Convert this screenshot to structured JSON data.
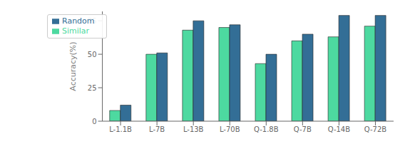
{
  "chart_data": {
    "type": "bar",
    "categories": [
      "L-1.1B",
      "L-7B",
      "L-13B",
      "L-70B",
      "Q-1.8B",
      "Q-7B",
      "Q-14B",
      "Q-72B"
    ],
    "series": [
      {
        "name": "Similar",
        "color": "#4dd9a0",
        "values": [
          8,
          50,
          68,
          70,
          43,
          60,
          63,
          71
        ]
      },
      {
        "name": "Random",
        "color": "#336e96",
        "values": [
          12,
          51,
          75,
          72,
          50,
          65,
          79,
          79
        ]
      }
    ],
    "ylabel": "Accuracy(%)",
    "ylim": [
      0,
      82
    ],
    "yticks": [
      0,
      25,
      50,
      75
    ],
    "legend": "upper left",
    "grid": false
  }
}
